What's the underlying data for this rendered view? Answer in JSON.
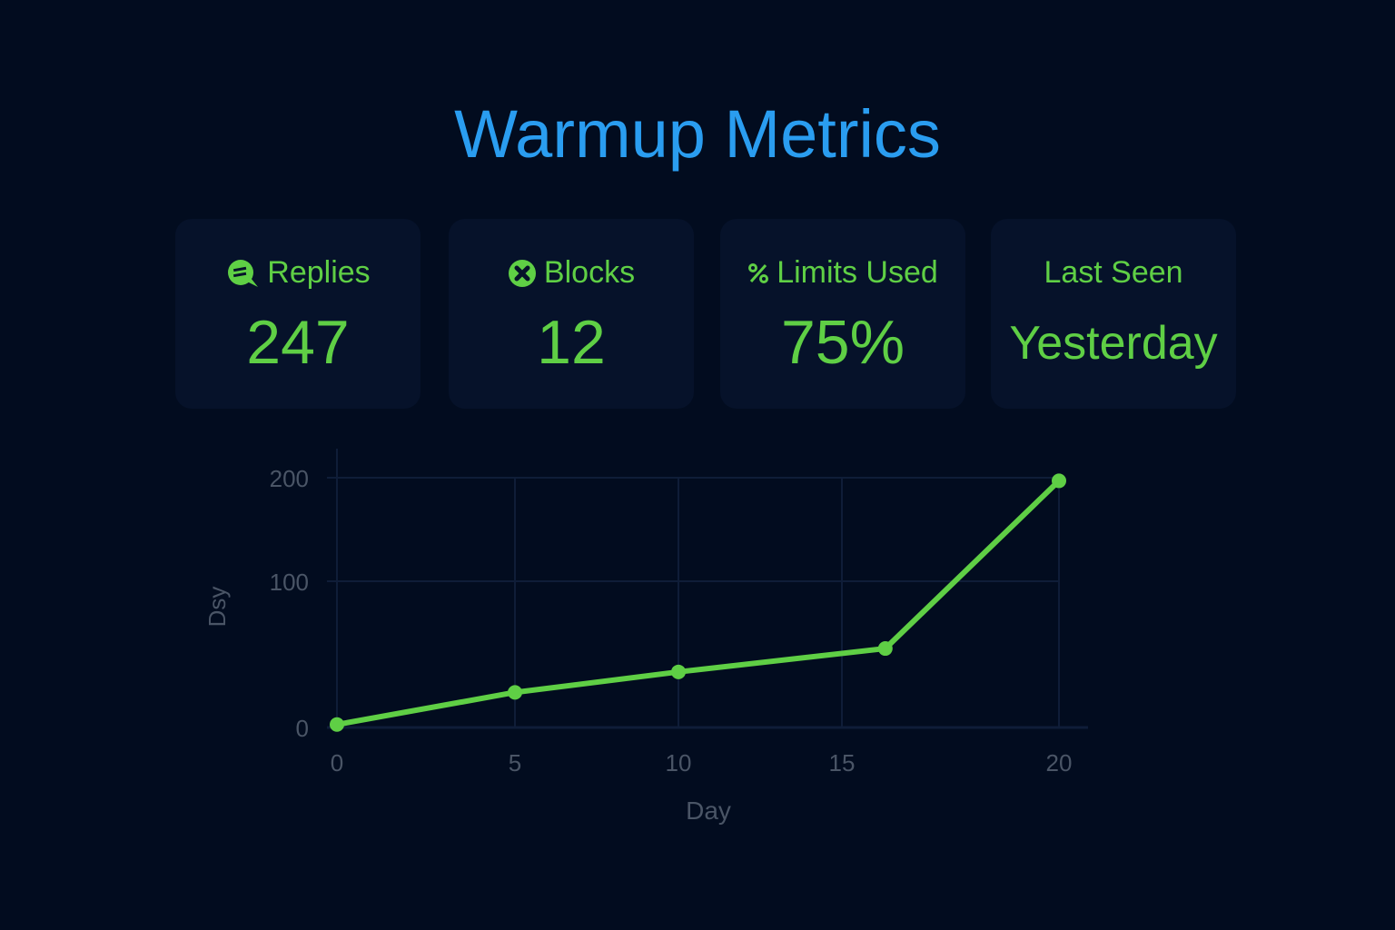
{
  "header": {
    "title": "Warmup Metrics"
  },
  "cards": [
    {
      "label": "Replies",
      "value": "247",
      "icon": "chat-bubble-icon"
    },
    {
      "label": "Blocks",
      "value": "12",
      "icon": "x-circle-icon"
    },
    {
      "label": "Limits Used",
      "value": "75%",
      "icon": "percent-icon"
    },
    {
      "label": "Last Seen",
      "value": "Yesterday",
      "icon": ""
    }
  ],
  "colors": {
    "accent": "#2a9df0",
    "green": "#5fcf45",
    "bg": "#020c1f",
    "card": "#06122a"
  },
  "chart_data": {
    "type": "line",
    "title": "",
    "xlabel": "Day",
    "ylabel": "Dsy",
    "x_ticks": [
      "0",
      "5",
      "10",
      "15",
      "20"
    ],
    "y_ticks": [
      "0",
      "100",
      "200"
    ],
    "xlim": [
      0,
      20
    ],
    "ylim": [
      0,
      200
    ],
    "grid": true,
    "series": [
      {
        "name": "Replies",
        "x": [
          0,
          5,
          10,
          16,
          20
        ],
        "values": [
          2,
          24,
          38,
          54,
          197
        ],
        "color": "#5fcf45"
      }
    ]
  }
}
